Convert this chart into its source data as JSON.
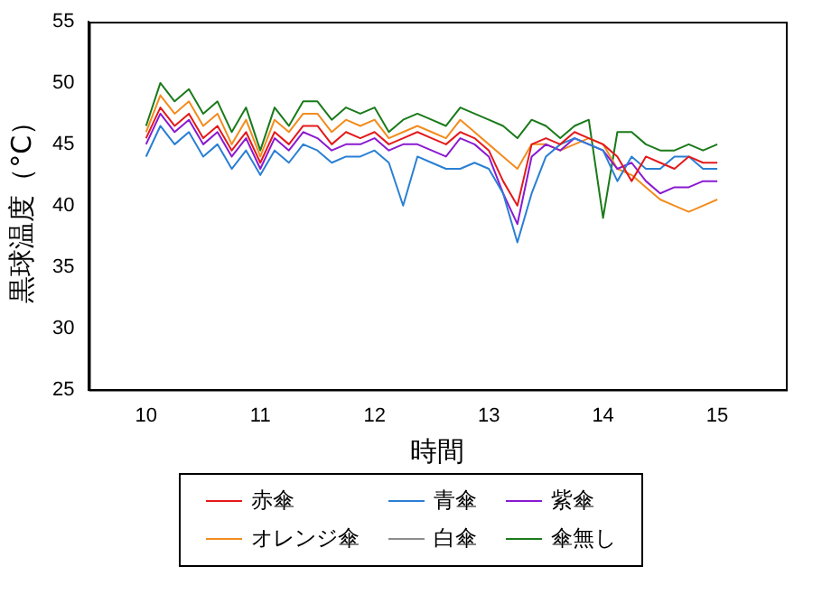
{
  "chart_data": {
    "type": "line",
    "xlabel": "時間",
    "ylabel": "黒球温度（°C）",
    "x": [
      10,
      10.125,
      10.25,
      10.375,
      10.5,
      10.625,
      10.75,
      10.875,
      11,
      11.125,
      11.25,
      11.375,
      11.5,
      11.625,
      11.75,
      11.875,
      12,
      12.125,
      12.25,
      12.375,
      12.5,
      12.625,
      12.75,
      12.875,
      13,
      13.125,
      13.25,
      13.375,
      13.5,
      13.625,
      13.75,
      13.875,
      14,
      14.125,
      14.25,
      14.375,
      14.5,
      14.625,
      14.75,
      14.875,
      15
    ],
    "series": [
      {
        "name": "赤傘",
        "color": "#e31a1c",
        "values": [
          45.5,
          48,
          46.5,
          47.5,
          45.5,
          46.5,
          44.5,
          46,
          43.5,
          46,
          45,
          46.5,
          46.5,
          45,
          46,
          45.5,
          46,
          45,
          45.5,
          46,
          45.5,
          45,
          46,
          45.5,
          44.5,
          42,
          40,
          45,
          45.5,
          45,
          46,
          45.5,
          45,
          44,
          42,
          44,
          43.5,
          43,
          44,
          43.5,
          43.5
        ]
      },
      {
        "name": "青傘",
        "color": "#2a7fd4",
        "values": [
          44,
          46.5,
          45,
          46,
          44,
          45,
          43,
          44.5,
          42.5,
          44.5,
          43.5,
          45,
          44.5,
          43.5,
          44,
          44,
          44.5,
          43.5,
          40,
          44,
          43.5,
          43,
          43,
          43.5,
          43,
          41,
          37,
          41,
          44,
          45,
          45.5,
          45,
          44.5,
          42,
          44,
          43,
          43,
          44,
          44,
          43,
          43
        ]
      },
      {
        "name": "紫傘",
        "color": "#8a1ad1",
        "values": [
          45,
          47.5,
          46,
          47,
          45,
          46,
          44,
          45.5,
          43,
          45.5,
          44.5,
          46,
          45.5,
          44.5,
          45,
          45,
          45.5,
          44.5,
          45,
          45,
          44.5,
          44,
          45.5,
          45,
          44,
          41,
          38.5,
          44,
          45,
          44.5,
          45.5,
          45,
          44.5,
          43,
          43.5,
          42,
          41,
          41.5,
          41.5,
          42,
          42
        ]
      },
      {
        "name": "オレンジ傘",
        "color": "#f28c1e",
        "values": [
          46,
          49,
          47.5,
          48.5,
          46.5,
          47.5,
          45,
          47,
          44,
          47,
          46,
          47.5,
          47.5,
          46,
          47,
          46.5,
          47,
          45.5,
          46,
          46.5,
          46,
          45.5,
          47,
          46,
          45,
          44,
          43,
          45,
          45,
          44.5,
          45,
          45.5,
          45,
          43,
          42.5,
          41.5,
          40.5,
          40,
          39.5,
          40,
          40.5
        ]
      },
      {
        "name": "白傘",
        "color": "#8c8c8c",
        "values": [
          null,
          null,
          null,
          null,
          null,
          null,
          null,
          null,
          null,
          null,
          null,
          null,
          null,
          null,
          null,
          null,
          null,
          null,
          null,
          null,
          null,
          null,
          null,
          null,
          null,
          null,
          null,
          null,
          null,
          null,
          null,
          null,
          null,
          null,
          null,
          null,
          null,
          null,
          null,
          null,
          null
        ]
      },
      {
        "name": "傘無し",
        "color": "#1a7a1a",
        "values": [
          46.5,
          50,
          48.5,
          49.5,
          47.5,
          48.5,
          46,
          48,
          44.5,
          48,
          46.5,
          48.5,
          48.5,
          47,
          48,
          47.5,
          48,
          46,
          47,
          47.5,
          47,
          46.5,
          48,
          47.5,
          47,
          46.5,
          45.5,
          47,
          46.5,
          45.5,
          46.5,
          47,
          39,
          46,
          46,
          45,
          44.5,
          44.5,
          45,
          44.5,
          45
        ]
      }
    ],
    "xlim": [
      9.5,
      15.6
    ],
    "xticks": [
      10,
      11,
      12,
      13,
      14,
      15
    ],
    "ylim": [
      25,
      55
    ],
    "yticks": [
      25,
      30,
      35,
      40,
      45,
      50,
      55
    ],
    "grid": false,
    "legend": "bottom",
    "marker": "none",
    "line_style": "solid"
  }
}
